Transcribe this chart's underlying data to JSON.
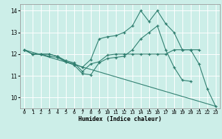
{
  "xlabel": "Humidex (Indice chaleur)",
  "bg_color": "#cceee8",
  "grid_color": "#ffffff",
  "line_color": "#2e7d6e",
  "xlim": [
    -0.5,
    23.5
  ],
  "ylim": [
    9.5,
    14.3
  ],
  "xticks": [
    0,
    1,
    2,
    3,
    4,
    5,
    6,
    7,
    8,
    9,
    10,
    11,
    12,
    13,
    14,
    15,
    16,
    17,
    18,
    19,
    20,
    21,
    22,
    23
  ],
  "yticks": [
    10,
    11,
    12,
    13,
    14
  ],
  "lines": [
    {
      "x": [
        0,
        1,
        2,
        3,
        4,
        5,
        6,
        7,
        8,
        9,
        10,
        11,
        12,
        13,
        14,
        15,
        16,
        17,
        18,
        19,
        20,
        21,
        22,
        23
      ],
      "y": [
        12.2,
        12.0,
        12.0,
        11.9,
        11.85,
        11.65,
        11.55,
        11.4,
        11.75,
        12.7,
        12.8,
        12.85,
        13.0,
        13.3,
        14.0,
        13.5,
        14.0,
        13.4,
        13.0,
        12.2,
        12.2,
        11.55,
        10.4,
        9.6
      ],
      "marker": true
    },
    {
      "x": [
        0,
        1,
        2,
        3,
        4,
        5,
        6,
        7,
        8,
        9,
        10,
        11,
        12,
        13,
        14,
        15,
        16,
        17,
        18,
        19,
        20,
        21
      ],
      "y": [
        12.2,
        12.0,
        12.0,
        12.0,
        11.9,
        11.7,
        11.6,
        11.2,
        11.55,
        11.65,
        11.95,
        12.0,
        12.0,
        12.0,
        12.0,
        12.0,
        12.0,
        12.0,
        12.2,
        12.2,
        12.2,
        12.2
      ],
      "marker": true
    },
    {
      "x": [
        0,
        1,
        2,
        3,
        4,
        5,
        6,
        7,
        8,
        9,
        10,
        11,
        12,
        13,
        14,
        15,
        16,
        17,
        18,
        19,
        20
      ],
      "y": [
        12.2,
        12.0,
        12.0,
        12.0,
        11.9,
        11.65,
        11.5,
        11.1,
        11.05,
        11.6,
        11.8,
        11.85,
        11.9,
        12.2,
        12.7,
        13.0,
        13.3,
        12.2,
        11.4,
        10.8,
        10.75
      ],
      "marker": true
    },
    {
      "x": [
        0,
        23
      ],
      "y": [
        12.2,
        9.6
      ],
      "marker": false
    }
  ]
}
